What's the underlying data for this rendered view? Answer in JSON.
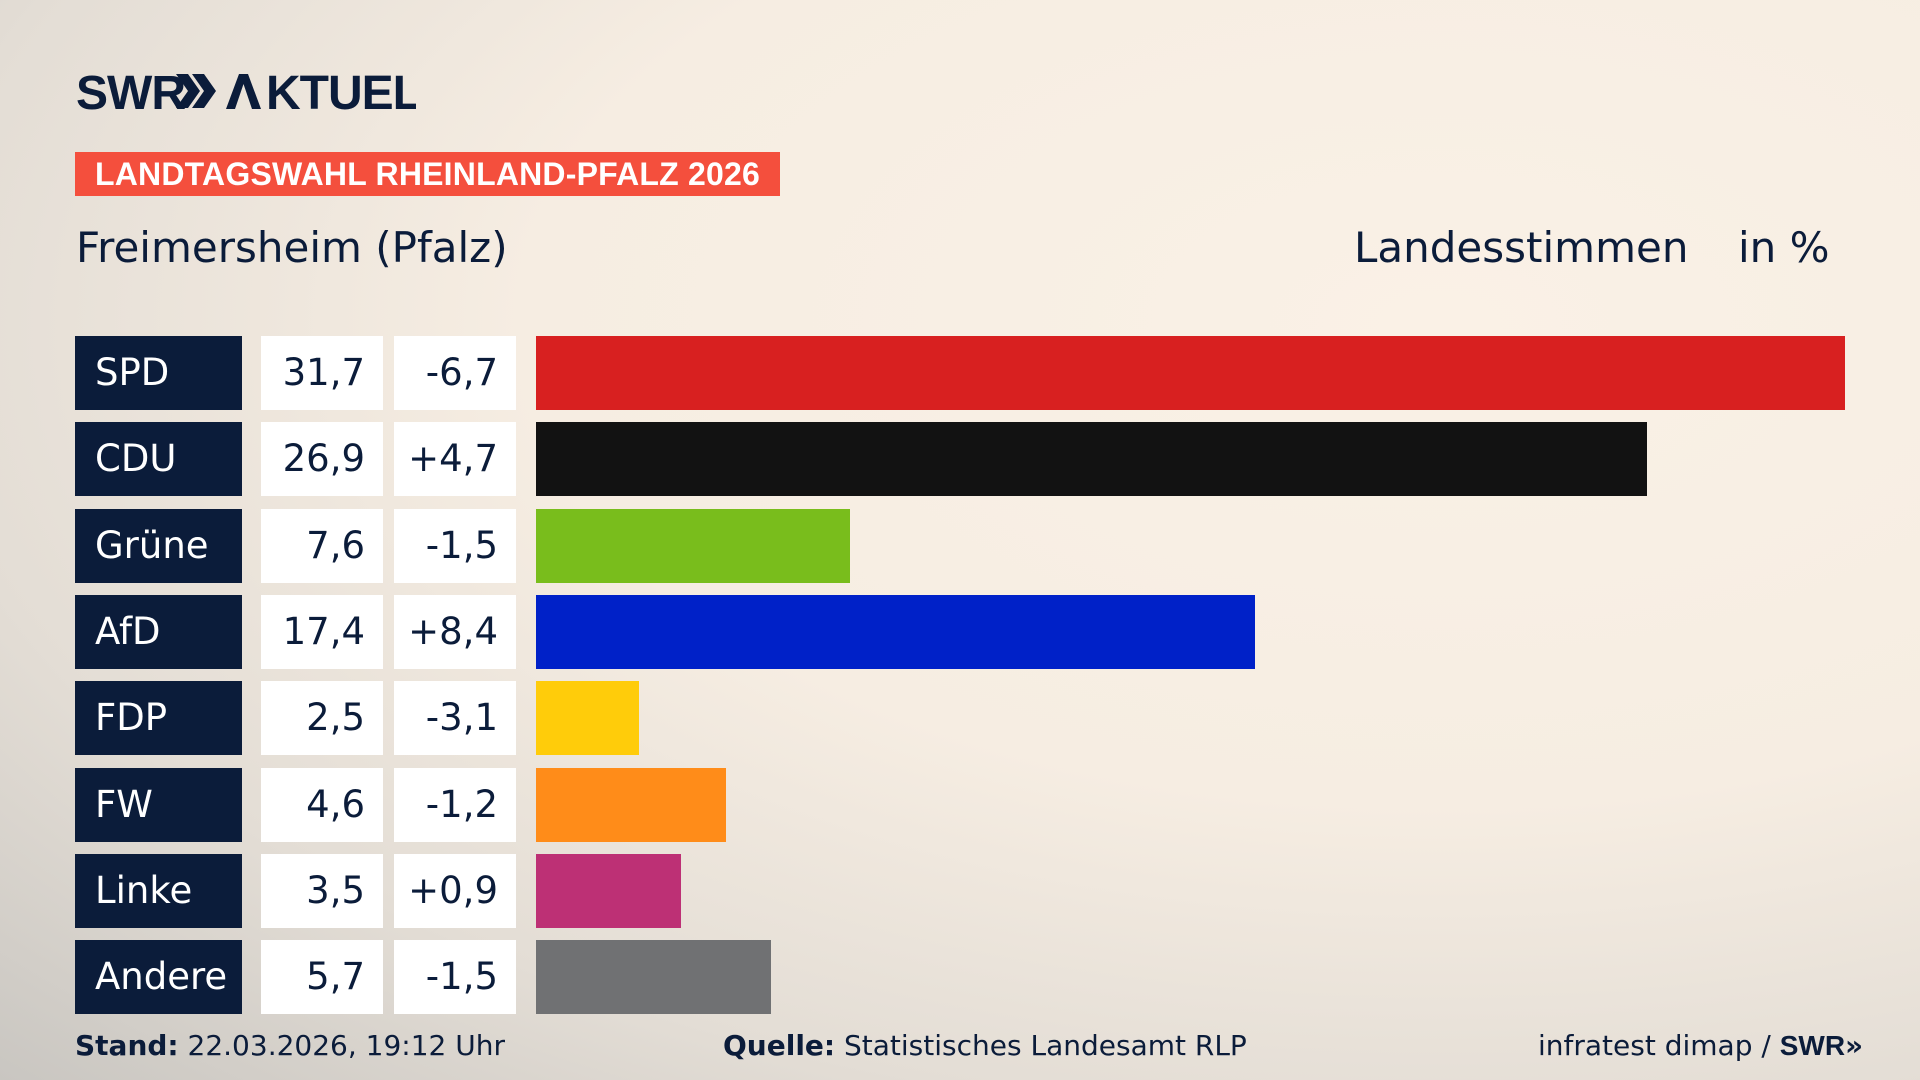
{
  "logo": {
    "text": "SWR AKTUELL"
  },
  "banner": "LANDTAGSWAHL RHEINLAND-PFALZ 2026",
  "location": "Freimersheim (Pfalz)",
  "vote_type": "Landesstimmen",
  "unit": "in %",
  "chart_data": {
    "type": "bar",
    "orientation": "horizontal",
    "categories": [
      "SPD",
      "CDU",
      "Grüne",
      "AfD",
      "FDP",
      "FW",
      "Linke",
      "Andere"
    ],
    "values": [
      31.7,
      26.9,
      7.6,
      17.4,
      2.5,
      4.6,
      3.5,
      5.7
    ],
    "value_labels": [
      "31,7",
      "26,9",
      "7,6",
      "17,4",
      "2,5",
      "4,6",
      "3,5",
      "5,7"
    ],
    "changes": [
      -6.7,
      4.7,
      -1.5,
      8.4,
      -3.1,
      -1.2,
      0.9,
      -1.5
    ],
    "change_labels": [
      "-6,7",
      "+4,7",
      "-1,5",
      "+8,4",
      "-3,1",
      "-1,2",
      "+0,9",
      "-1,5"
    ],
    "colors": [
      "#d82020",
      "#121212",
      "#79bd1c",
      "#0021c8",
      "#ffcc0a",
      "#ff8c19",
      "#bd3075",
      "#707173"
    ],
    "grid": false
  },
  "footer": {
    "stand_label": "Stand:",
    "stand_value": "22.03.2026, 19:12 Uhr",
    "source_label": "Quelle:",
    "source_value": "Statistisches Landesamt RLP",
    "credit": "infratest dimap / ",
    "credit_logo": "SWR"
  }
}
